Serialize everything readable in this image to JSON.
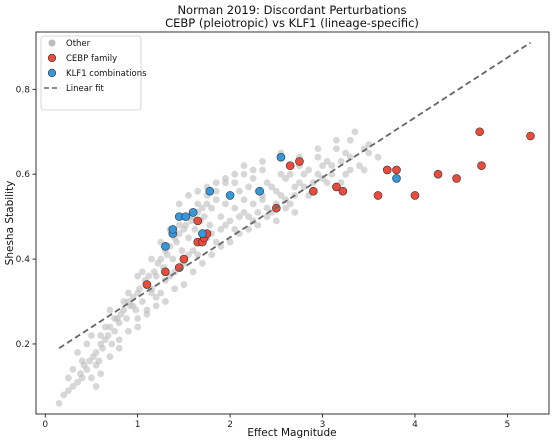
{
  "chart_data": {
    "type": "scatter",
    "title": "Norman 2019: Discordant Perturbations",
    "subtitle": "CEBP (pleiotropic) vs KLF1 (lineage-specific)",
    "xlabel": "Effect Magnitude",
    "ylabel": "Shesha Stability",
    "xlim": [
      -0.1,
      5.45
    ],
    "ylim": [
      0.035,
      0.935
    ],
    "xticks": [
      0,
      1,
      2,
      3,
      4,
      5
    ],
    "yticks": [
      0.2,
      0.4,
      0.6,
      0.8
    ],
    "grid": false,
    "legend_position": "top-left",
    "series": [
      {
        "name": "Other",
        "color": "#bdbdbd",
        "points": [
          [
            0.15,
            0.06
          ],
          [
            0.2,
            0.08
          ],
          [
            0.25,
            0.09
          ],
          [
            0.3,
            0.1
          ],
          [
            0.35,
            0.11
          ],
          [
            0.38,
            0.13
          ],
          [
            0.4,
            0.12
          ],
          [
            0.42,
            0.15
          ],
          [
            0.45,
            0.14
          ],
          [
            0.48,
            0.16
          ],
          [
            0.5,
            0.12
          ],
          [
            0.52,
            0.17
          ],
          [
            0.55,
            0.18
          ],
          [
            0.58,
            0.16
          ],
          [
            0.6,
            0.2
          ],
          [
            0.62,
            0.19
          ],
          [
            0.65,
            0.21
          ],
          [
            0.68,
            0.22
          ],
          [
            0.7,
            0.24
          ],
          [
            0.72,
            0.2
          ],
          [
            0.75,
            0.23
          ],
          [
            0.78,
            0.26
          ],
          [
            0.8,
            0.25
          ],
          [
            0.82,
            0.27
          ],
          [
            0.85,
            0.28
          ],
          [
            0.88,
            0.26
          ],
          [
            0.9,
            0.3
          ],
          [
            0.92,
            0.29
          ],
          [
            0.95,
            0.31
          ],
          [
            0.98,
            0.28
          ],
          [
            1.0,
            0.32
          ],
          [
            1.02,
            0.33
          ],
          [
            1.05,
            0.3
          ],
          [
            1.08,
            0.35
          ],
          [
            1.1,
            0.34
          ],
          [
            1.12,
            0.36
          ],
          [
            1.15,
            0.33
          ],
          [
            1.18,
            0.37
          ],
          [
            1.2,
            0.36
          ],
          [
            1.22,
            0.39
          ],
          [
            1.25,
            0.4
          ],
          [
            1.28,
            0.38
          ],
          [
            1.3,
            0.42
          ],
          [
            1.32,
            0.41
          ],
          [
            1.35,
            0.43
          ],
          [
            1.38,
            0.4
          ],
          [
            1.4,
            0.45
          ],
          [
            1.42,
            0.44
          ],
          [
            1.45,
            0.46
          ],
          [
            1.48,
            0.42
          ],
          [
            1.5,
            0.47
          ],
          [
            1.52,
            0.48
          ],
          [
            1.55,
            0.45
          ],
          [
            1.58,
            0.49
          ],
          [
            1.6,
            0.5
          ],
          [
            1.62,
            0.47
          ],
          [
            1.65,
            0.51
          ],
          [
            1.68,
            0.49
          ],
          [
            1.7,
            0.52
          ],
          [
            1.72,
            0.5
          ],
          [
            1.75,
            0.53
          ],
          [
            1.78,
            0.48
          ],
          [
            1.8,
            0.52
          ],
          [
            1.85,
            0.54
          ],
          [
            1.9,
            0.5
          ],
          [
            1.95,
            0.53
          ],
          [
            2.0,
            0.55
          ],
          [
            2.05,
            0.52
          ],
          [
            2.1,
            0.56
          ],
          [
            2.15,
            0.54
          ],
          [
            2.2,
            0.57
          ],
          [
            2.25,
            0.53
          ],
          [
            2.3,
            0.56
          ],
          [
            2.35,
            0.55
          ],
          [
            2.4,
            0.58
          ],
          [
            2.5,
            0.56
          ],
          [
            2.6,
            0.59
          ],
          [
            2.7,
            0.57
          ],
          [
            2.8,
            0.6
          ],
          [
            2.9,
            0.58
          ],
          [
            3.0,
            0.62
          ],
          [
            3.1,
            0.6
          ],
          [
            3.2,
            0.63
          ],
          [
            3.3,
            0.61
          ],
          [
            3.5,
            0.65
          ],
          [
            0.55,
            0.1
          ],
          [
            0.45,
            0.2
          ],
          [
            0.7,
            0.17
          ],
          [
            0.9,
            0.23
          ],
          [
            1.1,
            0.28
          ],
          [
            1.3,
            0.35
          ],
          [
            1.5,
            0.39
          ],
          [
            1.7,
            0.44
          ],
          [
            1.9,
            0.47
          ],
          [
            2.1,
            0.5
          ],
          [
            2.3,
            0.51
          ],
          [
            2.5,
            0.53
          ],
          [
            2.7,
            0.55
          ],
          [
            0.3,
            0.14
          ],
          [
            0.6,
            0.13
          ],
          [
            1.0,
            0.36
          ],
          [
            1.2,
            0.31
          ],
          [
            1.4,
            0.37
          ],
          [
            1.6,
            0.42
          ],
          [
            1.8,
            0.46
          ],
          [
            2.0,
            0.49
          ],
          [
            2.2,
            0.5
          ],
          [
            2.4,
            0.52
          ],
          [
            2.6,
            0.54
          ],
          [
            2.8,
            0.57
          ],
          [
            3.0,
            0.59
          ],
          [
            3.2,
            0.58
          ],
          [
            3.4,
            0.62
          ],
          [
            3.6,
            0.64
          ],
          [
            0.5,
            0.22
          ],
          [
            0.7,
            0.28
          ],
          [
            0.9,
            0.32
          ],
          [
            1.15,
            0.4
          ],
          [
            1.35,
            0.47
          ],
          [
            1.55,
            0.5
          ],
          [
            1.75,
            0.55
          ],
          [
            1.95,
            0.58
          ],
          [
            2.15,
            0.6
          ],
          [
            2.35,
            0.61
          ],
          [
            2.55,
            0.6
          ],
          [
            2.75,
            0.62
          ],
          [
            2.95,
            0.64
          ],
          [
            3.15,
            0.66
          ],
          [
            3.3,
            0.68
          ],
          [
            3.5,
            0.67
          ],
          [
            0.35,
            0.18
          ],
          [
            0.65,
            0.24
          ],
          [
            0.85,
            0.3
          ],
          [
            1.05,
            0.37
          ],
          [
            1.25,
            0.44
          ],
          [
            1.45,
            0.48
          ],
          [
            1.65,
            0.53
          ],
          [
            1.85,
            0.56
          ],
          [
            2.05,
            0.58
          ],
          [
            2.25,
            0.59
          ],
          [
            2.45,
            0.57
          ],
          [
            2.65,
            0.6
          ],
          [
            2.85,
            0.61
          ],
          [
            3.05,
            0.63
          ],
          [
            3.25,
            0.65
          ],
          [
            1.1,
            0.27
          ],
          [
            1.3,
            0.3
          ],
          [
            1.5,
            0.34
          ],
          [
            1.7,
            0.39
          ],
          [
            1.9,
            0.43
          ],
          [
            2.1,
            0.46
          ],
          [
            2.3,
            0.48
          ],
          [
            2.5,
            0.49
          ],
          [
            2.7,
            0.51
          ],
          [
            0.8,
            0.19
          ],
          [
            1.0,
            0.24
          ],
          [
            1.2,
            0.29
          ],
          [
            1.4,
            0.33
          ],
          [
            1.6,
            0.37
          ],
          [
            1.8,
            0.41
          ],
          [
            2.0,
            0.44
          ],
          [
            2.2,
            0.47
          ],
          [
            2.4,
            0.5
          ],
          [
            2.6,
            0.52
          ],
          [
            1.55,
            0.55
          ],
          [
            1.75,
            0.57
          ],
          [
            1.95,
            0.59
          ],
          [
            2.15,
            0.62
          ],
          [
            2.35,
            0.63
          ],
          [
            2.55,
            0.65
          ],
          [
            2.75,
            0.64
          ],
          [
            2.95,
            0.66
          ],
          [
            3.15,
            0.68
          ],
          [
            3.35,
            0.7
          ],
          [
            1.45,
            0.53
          ],
          [
            1.65,
            0.56
          ],
          [
            1.85,
            0.58
          ],
          [
            2.05,
            0.6
          ],
          [
            2.25,
            0.61
          ],
          [
            0.6,
            0.22
          ],
          [
            0.75,
            0.26
          ],
          [
            0.95,
            0.29
          ],
          [
            1.15,
            0.32
          ],
          [
            1.35,
            0.36
          ],
          [
            1.55,
            0.41
          ],
          [
            1.75,
            0.45
          ],
          [
            1.95,
            0.48
          ],
          [
            2.15,
            0.51
          ],
          [
            2.35,
            0.54
          ],
          [
            2.55,
            0.55
          ],
          [
            2.75,
            0.58
          ],
          [
            2.95,
            0.6
          ],
          [
            3.1,
            0.62
          ],
          [
            3.3,
            0.64
          ],
          [
            3.45,
            0.66
          ],
          [
            0.25,
            0.12
          ],
          [
            0.4,
            0.16
          ],
          [
            0.55,
            0.15
          ],
          [
            0.8,
            0.21
          ],
          [
            1.0,
            0.26
          ],
          [
            1.25,
            0.32
          ],
          [
            1.45,
            0.38
          ],
          [
            1.65,
            0.41
          ],
          [
            1.85,
            0.44
          ],
          [
            2.05,
            0.47
          ],
          [
            2.25,
            0.49
          ],
          [
            2.45,
            0.51
          ],
          [
            2.65,
            0.53
          ],
          [
            2.85,
            0.55
          ],
          [
            3.05,
            0.58
          ],
          [
            3.25,
            0.6
          ],
          [
            3.45,
            0.61
          ]
        ]
      },
      {
        "name": "CEBP family",
        "color": "#e74c3c",
        "points": [
          [
            1.1,
            0.34
          ],
          [
            1.3,
            0.37
          ],
          [
            1.45,
            0.38
          ],
          [
            1.5,
            0.4
          ],
          [
            1.65,
            0.44
          ],
          [
            1.7,
            0.44
          ],
          [
            1.72,
            0.45
          ],
          [
            1.65,
            0.49
          ],
          [
            1.75,
            0.46
          ],
          [
            2.5,
            0.52
          ],
          [
            2.65,
            0.62
          ],
          [
            2.75,
            0.63
          ],
          [
            2.9,
            0.56
          ],
          [
            3.15,
            0.57
          ],
          [
            3.22,
            0.56
          ],
          [
            3.6,
            0.55
          ],
          [
            3.7,
            0.61
          ],
          [
            3.8,
            0.61
          ],
          [
            4.0,
            0.55
          ],
          [
            4.25,
            0.6
          ],
          [
            4.45,
            0.59
          ],
          [
            4.7,
            0.7
          ],
          [
            4.72,
            0.62
          ],
          [
            5.25,
            0.69
          ]
        ]
      },
      {
        "name": "KLF1 combinations",
        "color": "#3498db",
        "points": [
          [
            1.3,
            0.43
          ],
          [
            1.38,
            0.46
          ],
          [
            1.38,
            0.47
          ],
          [
            1.45,
            0.5
          ],
          [
            1.52,
            0.5
          ],
          [
            1.6,
            0.51
          ],
          [
            1.7,
            0.46
          ],
          [
            1.78,
            0.56
          ],
          [
            2.0,
            0.55
          ],
          [
            2.32,
            0.56
          ],
          [
            2.55,
            0.64
          ],
          [
            3.8,
            0.59
          ]
        ]
      }
    ],
    "fit": {
      "name": "Linear fit",
      "color": "#666666",
      "style": "dashed",
      "points": [
        [
          0.15,
          0.19
        ],
        [
          5.25,
          0.91
        ]
      ]
    }
  }
}
